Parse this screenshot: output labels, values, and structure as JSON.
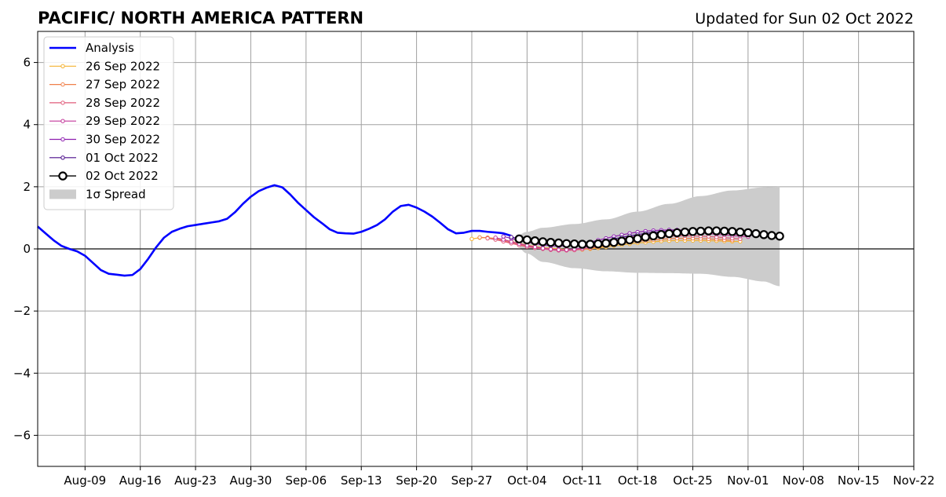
{
  "chart_data": {
    "type": "line",
    "title": "PACIFIC/ NORTH AMERICA PATTERN",
    "subtitle": "Updated for Sun 02 Oct 2022",
    "xlabel": "",
    "ylabel": "",
    "x_range": [
      "2022-08-03",
      "2022-11-22"
    ],
    "ylim": [
      -7,
      7
    ],
    "grid": true,
    "zero_line": true,
    "legend_position": "upper-left",
    "x_ticks": [
      {
        "date": "2022-08-09",
        "label": "Aug-09"
      },
      {
        "date": "2022-08-16",
        "label": "Aug-16"
      },
      {
        "date": "2022-08-23",
        "label": "Aug-23"
      },
      {
        "date": "2022-08-30",
        "label": "Aug-30"
      },
      {
        "date": "2022-09-06",
        "label": "Sep-06"
      },
      {
        "date": "2022-09-13",
        "label": "Sep-13"
      },
      {
        "date": "2022-09-20",
        "label": "Sep-20"
      },
      {
        "date": "2022-09-27",
        "label": "Sep-27"
      },
      {
        "date": "2022-10-04",
        "label": "Oct-04"
      },
      {
        "date": "2022-10-11",
        "label": "Oct-11"
      },
      {
        "date": "2022-10-18",
        "label": "Oct-18"
      },
      {
        "date": "2022-10-25",
        "label": "Oct-25"
      },
      {
        "date": "2022-11-01",
        "label": "Nov-01"
      },
      {
        "date": "2022-11-08",
        "label": "Nov-08"
      },
      {
        "date": "2022-11-15",
        "label": "Nov-15"
      },
      {
        "date": "2022-11-22",
        "label": "Nov-22"
      }
    ],
    "y_ticks": [
      {
        "value": 6,
        "label": "6"
      },
      {
        "value": 4,
        "label": "4"
      },
      {
        "value": 2,
        "label": "2"
      },
      {
        "value": 0,
        "label": "0"
      },
      {
        "value": -2,
        "label": "−2"
      },
      {
        "value": -4,
        "label": "−4"
      },
      {
        "value": -6,
        "label": "−6"
      }
    ],
    "analysis": {
      "name": "Analysis",
      "color": "#0000ff",
      "points": [
        [
          "2022-08-03",
          0.72
        ],
        [
          "2022-08-04",
          0.5
        ],
        [
          "2022-08-05",
          0.28
        ],
        [
          "2022-08-06",
          0.1
        ],
        [
          "2022-08-07",
          0.0
        ],
        [
          "2022-08-08",
          -0.08
        ],
        [
          "2022-08-09",
          -0.22
        ],
        [
          "2022-08-10",
          -0.45
        ],
        [
          "2022-08-11",
          -0.68
        ],
        [
          "2022-08-12",
          -0.8
        ],
        [
          "2022-08-13",
          -0.83
        ],
        [
          "2022-08-14",
          -0.86
        ],
        [
          "2022-08-15",
          -0.84
        ],
        [
          "2022-08-16",
          -0.65
        ],
        [
          "2022-08-17",
          -0.32
        ],
        [
          "2022-08-18",
          0.05
        ],
        [
          "2022-08-19",
          0.36
        ],
        [
          "2022-08-20",
          0.55
        ],
        [
          "2022-08-21",
          0.65
        ],
        [
          "2022-08-22",
          0.73
        ],
        [
          "2022-08-23",
          0.77
        ],
        [
          "2022-08-24",
          0.81
        ],
        [
          "2022-08-25",
          0.85
        ],
        [
          "2022-08-26",
          0.89
        ],
        [
          "2022-08-27",
          0.97
        ],
        [
          "2022-08-28",
          1.18
        ],
        [
          "2022-08-29",
          1.45
        ],
        [
          "2022-08-30",
          1.68
        ],
        [
          "2022-08-31",
          1.86
        ],
        [
          "2022-09-01",
          1.97
        ],
        [
          "2022-09-02",
          2.05
        ],
        [
          "2022-09-03",
          1.98
        ],
        [
          "2022-09-04",
          1.75
        ],
        [
          "2022-09-05",
          1.48
        ],
        [
          "2022-09-06",
          1.25
        ],
        [
          "2022-09-07",
          1.02
        ],
        [
          "2022-09-08",
          0.83
        ],
        [
          "2022-09-09",
          0.63
        ],
        [
          "2022-09-10",
          0.52
        ],
        [
          "2022-09-11",
          0.5
        ],
        [
          "2022-09-12",
          0.49
        ],
        [
          "2022-09-13",
          0.55
        ],
        [
          "2022-09-14",
          0.65
        ],
        [
          "2022-09-15",
          0.77
        ],
        [
          "2022-09-16",
          0.95
        ],
        [
          "2022-09-17",
          1.2
        ],
        [
          "2022-09-18",
          1.38
        ],
        [
          "2022-09-19",
          1.42
        ],
        [
          "2022-09-20",
          1.33
        ],
        [
          "2022-09-21",
          1.2
        ],
        [
          "2022-09-22",
          1.04
        ],
        [
          "2022-09-23",
          0.84
        ],
        [
          "2022-09-24",
          0.63
        ],
        [
          "2022-09-25",
          0.5
        ],
        [
          "2022-09-26",
          0.52
        ],
        [
          "2022-09-27",
          0.58
        ],
        [
          "2022-09-28",
          0.58
        ],
        [
          "2022-09-29",
          0.55
        ],
        [
          "2022-09-30",
          0.53
        ],
        [
          "2022-10-01",
          0.5
        ],
        [
          "2022-10-02",
          0.42
        ]
      ]
    },
    "forecasts": [
      {
        "name": "26 Sep 2022",
        "color": "#f5b331",
        "start": "2022-09-27",
        "values": [
          0.32,
          0.36,
          0.36,
          0.34,
          0.3,
          0.24,
          0.18,
          0.12,
          0.08,
          0.04,
          0.02,
          0.0,
          -0.02,
          -0.03,
          -0.02,
          0.0,
          0.03,
          0.06,
          0.1,
          0.13,
          0.16,
          0.19,
          0.21,
          0.23,
          0.25,
          0.26,
          0.27,
          0.27,
          0.27,
          0.27,
          0.26,
          0.26,
          0.25,
          0.24,
          0.24
        ]
      },
      {
        "name": "27 Sep 2022",
        "color": "#f0804a",
        "start": "2022-09-28",
        "values": [
          0.37,
          0.36,
          0.32,
          0.26,
          0.2,
          0.14,
          0.09,
          0.05,
          0.02,
          0.0,
          -0.02,
          -0.03,
          -0.03,
          -0.01,
          0.02,
          0.06,
          0.1,
          0.14,
          0.18,
          0.21,
          0.24,
          0.27,
          0.29,
          0.31,
          0.33,
          0.34,
          0.34,
          0.34,
          0.33,
          0.32,
          0.31,
          0.29,
          0.28
        ]
      },
      {
        "name": "28 Sep 2022",
        "color": "#e05c7a",
        "start": "2022-09-29",
        "values": [
          0.34,
          0.3,
          0.24,
          0.18,
          0.12,
          0.07,
          0.03,
          0.0,
          -0.03,
          -0.05,
          -0.05,
          -0.04,
          -0.01,
          0.03,
          0.08,
          0.13,
          0.18,
          0.23,
          0.27,
          0.31,
          0.34,
          0.37,
          0.39,
          0.41,
          0.42,
          0.42,
          0.42,
          0.41,
          0.4,
          0.38,
          0.36,
          0.34,
          0.32
        ]
      },
      {
        "name": "29 Sep 2022",
        "color": "#c2369a",
        "start": "2022-09-30",
        "values": [
          0.36,
          0.3,
          0.23,
          0.17,
          0.11,
          0.06,
          0.02,
          -0.01,
          -0.03,
          -0.03,
          -0.01,
          0.03,
          0.08,
          0.14,
          0.2,
          0.26,
          0.32,
          0.37,
          0.41,
          0.45,
          0.48,
          0.5,
          0.52,
          0.53,
          0.53,
          0.52,
          0.51,
          0.49,
          0.47,
          0.45,
          0.43,
          0.41,
          0.39
        ]
      },
      {
        "name": "30 Sep 2022",
        "color": "#8e1fb0",
        "start": "2022-10-01",
        "values": [
          0.4,
          0.34,
          0.28,
          0.22,
          0.17,
          0.13,
          0.1,
          0.09,
          0.1,
          0.13,
          0.17,
          0.22,
          0.28,
          0.34,
          0.4,
          0.45,
          0.5,
          0.54,
          0.57,
          0.59,
          0.6,
          0.61,
          0.61,
          0.6,
          0.59,
          0.57,
          0.55,
          0.53,
          0.51,
          0.49,
          0.47,
          0.45,
          0.43
        ]
      },
      {
        "name": "01 Oct 2022",
        "color": "#4a0c8a",
        "start": "2022-10-02",
        "values": [
          0.38,
          0.33,
          0.28,
          0.24,
          0.2,
          0.17,
          0.15,
          0.14,
          0.14,
          0.15,
          0.18,
          0.22,
          0.27,
          0.32,
          0.37,
          0.42,
          0.46,
          0.5,
          0.53,
          0.55,
          0.57,
          0.58,
          0.58,
          0.58,
          0.57,
          0.56,
          0.54,
          0.52,
          0.5,
          0.48,
          0.46,
          0.44,
          0.42
        ]
      }
    ],
    "latest_forecast": {
      "name": "02 Oct 2022",
      "color": "#000000",
      "start": "2022-10-03",
      "values": [
        0.32,
        0.29,
        0.26,
        0.23,
        0.21,
        0.19,
        0.17,
        0.16,
        0.15,
        0.15,
        0.16,
        0.18,
        0.21,
        0.25,
        0.29,
        0.33,
        0.38,
        0.42,
        0.46,
        0.49,
        0.52,
        0.54,
        0.56,
        0.57,
        0.58,
        0.58,
        0.57,
        0.56,
        0.54,
        0.52,
        0.49,
        0.46,
        0.43,
        0.41
      ]
    },
    "spread": {
      "name": "1σ Spread",
      "color": "#cccccc",
      "start": "2022-10-02",
      "end": "2022-11-05",
      "upper_key": [
        [
          0,
          0.3
        ],
        [
          2,
          0.55
        ],
        [
          4,
          0.68
        ],
        [
          8,
          0.8
        ],
        [
          12,
          0.95
        ],
        [
          16,
          1.2
        ],
        [
          20,
          1.45
        ],
        [
          24,
          1.7
        ],
        [
          28,
          1.88
        ],
        [
          32,
          1.98
        ],
        [
          34,
          2.0
        ]
      ],
      "lower_key": [
        [
          0,
          0.3
        ],
        [
          2,
          -0.15
        ],
        [
          4,
          -0.42
        ],
        [
          8,
          -0.62
        ],
        [
          12,
          -0.72
        ],
        [
          16,
          -0.77
        ],
        [
          20,
          -0.78
        ],
        [
          24,
          -0.8
        ],
        [
          28,
          -0.9
        ],
        [
          32,
          -1.05
        ],
        [
          34,
          -1.2
        ]
      ]
    }
  }
}
